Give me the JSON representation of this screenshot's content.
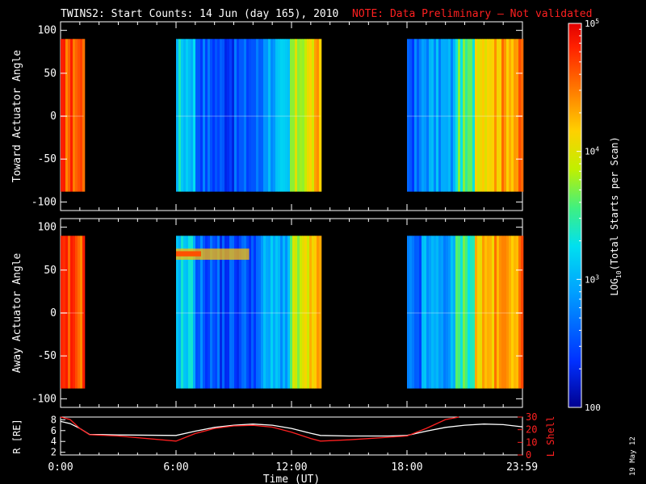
{
  "title": {
    "main": "TWINS2: Start Counts: 14 Jun (day 165), 2010",
    "note": "NOTE: Data Preliminary – Not validated",
    "note_color": "#ff2020"
  },
  "side_date": "19 May 12",
  "chart_data": [
    {
      "type": "heatmap",
      "name": "toward",
      "ylabel": "Toward Actuator Angle",
      "ylim": [
        -110,
        110
      ],
      "yticks": [
        100,
        50,
        0,
        -50,
        -100
      ],
      "angle_range": [
        -88,
        90
      ],
      "xlim_hours": [
        0,
        24
      ],
      "data_intervals_hours": [
        [
          0.0,
          1.2
        ],
        [
          6.0,
          13.5
        ],
        [
          18.0,
          24.0
        ]
      ],
      "gap_hours": [
        [
          1.2,
          6.0
        ],
        [
          13.5,
          18.0
        ]
      ],
      "colorscale": "log10",
      "grid": false
    },
    {
      "type": "heatmap",
      "name": "away",
      "ylabel": "Away Actuator Angle",
      "ylim": [
        -110,
        110
      ],
      "yticks": [
        100,
        50,
        0,
        -50,
        -100
      ],
      "angle_range": [
        -88,
        90
      ],
      "xlim_hours": [
        0,
        24
      ],
      "data_intervals_hours": [
        [
          0.0,
          1.2
        ],
        [
          6.0,
          13.5
        ],
        [
          18.0,
          24.0
        ]
      ],
      "gap_hours": [
        [
          1.2,
          6.0
        ],
        [
          13.5,
          18.0
        ]
      ],
      "colorscale": "log10",
      "grid": false
    },
    {
      "type": "line",
      "name": "ephemeris",
      "xlabel": "Time (UT)",
      "xticks": [
        "0:00",
        "6:00",
        "12:00",
        "18:00",
        "23:59"
      ],
      "xtick_hours": [
        0,
        6,
        12,
        18,
        23.98
      ],
      "left_axis": {
        "label": "R [RE]",
        "ylim": [
          1.5,
          8.5
        ],
        "ticks": [
          8,
          6,
          4,
          2
        ]
      },
      "right_axis": {
        "label": "L Shell",
        "ylim": [
          0,
          30
        ],
        "ticks": [
          30,
          20,
          10,
          0
        ],
        "color": "#ff2020"
      },
      "series": [
        {
          "name": "R",
          "axis": "left",
          "color": "#ffffff",
          "x": [
            0,
            0.5,
            1,
            1.5,
            3,
            6,
            7,
            8,
            9,
            10,
            11,
            12,
            13,
            13.5,
            15,
            17,
            18,
            19,
            20,
            21,
            22,
            23,
            24
          ],
          "y": [
            7.7,
            7.3,
            6.4,
            5.3,
            5.2,
            5.1,
            5.9,
            6.6,
            7.0,
            7.2,
            7.0,
            6.4,
            5.5,
            5.1,
            5.0,
            5.0,
            5.1,
            5.9,
            6.6,
            7.0,
            7.2,
            7.1,
            6.7
          ]
        },
        {
          "name": "L Shell",
          "axis": "right",
          "color": "#ff2020",
          "x": [
            0,
            0.5,
            1,
            1.5,
            3,
            6,
            7,
            8,
            9,
            10,
            11,
            12,
            13,
            13.5,
            15,
            17,
            18,
            19,
            20,
            20.7
          ],
          "y": [
            32,
            28,
            21,
            16,
            15,
            11,
            17,
            21,
            23,
            23.5,
            22,
            18,
            13,
            11,
            12,
            14,
            15,
            21,
            28,
            32
          ]
        }
      ]
    }
  ],
  "colorbar": {
    "label": "LOG10(Total Starts per Scan)",
    "label_text": "LOG",
    "label_sub": "10",
    "label_rest": "(Total Starts per Scan)",
    "ticks": [
      {
        "value": 100000,
        "base": "10",
        "exp": "5"
      },
      {
        "value": 10000,
        "base": "10",
        "exp": "4"
      },
      {
        "value": 1000,
        "base": "10",
        "exp": "3"
      },
      {
        "value": 100,
        "base": "100",
        "exp": ""
      }
    ],
    "range": [
      100,
      100000
    ],
    "colors": [
      "#0000a0",
      "#0030ff",
      "#00a0ff",
      "#00e8e8",
      "#40f080",
      "#c0f000",
      "#ffd000",
      "#ff7000",
      "#ff2000",
      "#e00000"
    ]
  }
}
